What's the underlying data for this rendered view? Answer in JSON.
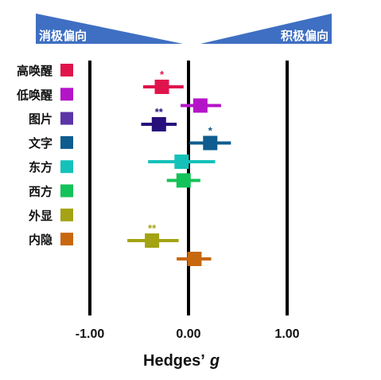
{
  "banners": {
    "left": {
      "label": "消极偏向",
      "color": "#3f6fc2"
    },
    "right": {
      "label": "积极偏向",
      "color": "#3f6fc2"
    }
  },
  "legend": [
    {
      "label": "高唤醒",
      "color": "#e0144c"
    },
    {
      "label": "低唤醒",
      "color": "#b414c8"
    },
    {
      "label": "图片",
      "color": "#5b35a6"
    },
    {
      "label": "文字",
      "color": "#0f5c8f"
    },
    {
      "label": "东方",
      "color": "#14c2b9"
    },
    {
      "label": "西方",
      "color": "#14c25a"
    },
    {
      "label": "外显",
      "color": "#a3a314"
    },
    {
      "label": "内隐",
      "color": "#c7680f"
    }
  ],
  "chart_data": {
    "type": "forest",
    "xlabel": "Hedges’",
    "xlabel_italic": "g",
    "xlim": [
      -1.2,
      1.2
    ],
    "xticks": [
      -1.0,
      0.0,
      1.0
    ],
    "xtick_labels": [
      "-1.00",
      "0.00",
      "1.00"
    ],
    "vertical_lines": [
      -1.0,
      0.0,
      1.0
    ],
    "series": [
      {
        "name": "高唤醒",
        "effect": -0.27,
        "ci": [
          -0.46,
          -0.05
        ],
        "sig": "*",
        "color": "#e0144c"
      },
      {
        "name": "低唤醒",
        "effect": 0.12,
        "ci": [
          -0.08,
          0.33
        ],
        "sig": "",
        "color": "#b414c8"
      },
      {
        "name": "文字",
        "effect": -0.3,
        "ci": [
          -0.48,
          -0.12
        ],
        "sig": "**",
        "color": "#27107c"
      },
      {
        "name": "图片",
        "effect": 0.22,
        "ci": [
          0.01,
          0.43
        ],
        "sig": "*",
        "color": "#0f5c8f"
      },
      {
        "name": "东方",
        "effect": -0.07,
        "ci": [
          -0.41,
          0.27
        ],
        "sig": "",
        "color": "#14c2b9"
      },
      {
        "name": "西方",
        "effect": -0.05,
        "ci": [
          -0.22,
          0.12
        ],
        "sig": "",
        "color": "#14c25a"
      },
      {
        "name": "外显",
        "effect": -0.37,
        "ci": [
          -0.62,
          -0.1
        ],
        "sig": "**",
        "color": "#a3a314"
      },
      {
        "name": "内隐",
        "effect": 0.06,
        "ci": [
          -0.12,
          0.23
        ],
        "sig": "",
        "color": "#c7680f"
      }
    ]
  }
}
